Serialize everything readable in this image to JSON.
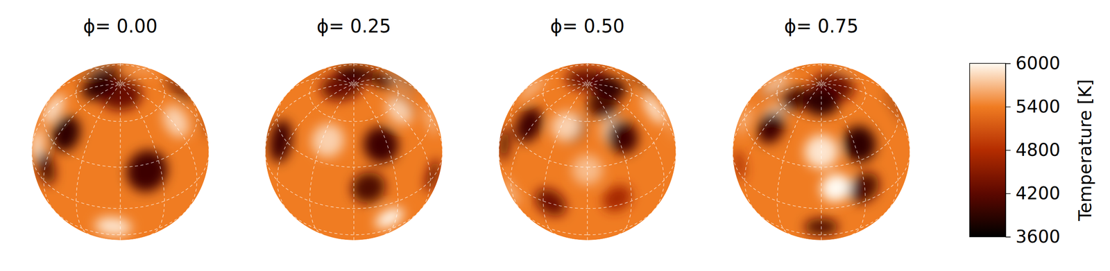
{
  "chart_data": {
    "type": "surface_map",
    "panels": [
      {
        "title": "ϕ= 0.00",
        "phase": 0.0
      },
      {
        "title": "ϕ= 0.25",
        "phase": 0.25
      },
      {
        "title": "ϕ= 0.50",
        "phase": 0.5
      },
      {
        "title": "ϕ= 0.75",
        "phase": 0.75
      }
    ],
    "surface_temperature": 5400,
    "spots": [
      {
        "lon": 20,
        "lat": 25,
        "radius": 14,
        "temperature": 4000
      },
      {
        "lon": -55,
        "lat": 40,
        "radius": 12,
        "temperature": 3900
      },
      {
        "lon": 0,
        "lat": 82,
        "radius": 14,
        "temperature": 4300
      },
      {
        "lon": -80,
        "lat": 15,
        "radius": 10,
        "temperature": 6000
      },
      {
        "lon": -5,
        "lat": -20,
        "radius": 12,
        "temperature": 5900
      },
      {
        "lon": 65,
        "lat": 45,
        "radius": 11,
        "temperature": 5800
      },
      {
        "lon": 115,
        "lat": 42,
        "radius": 12,
        "temperature": 4000
      },
      {
        "lon": 100,
        "lat": 15,
        "radius": 11,
        "temperature": 4100
      },
      {
        "lon": 115,
        "lat": -15,
        "radius": 10,
        "temperature": 6000
      },
      {
        "lon": 160,
        "lat": 55,
        "radius": 10,
        "temperature": 4200
      },
      {
        "lon": 155,
        "lat": 0,
        "radius": 11,
        "temperature": 4300
      },
      {
        "lon": 200,
        "lat": 5,
        "radius": 10,
        "temperature": 4700
      },
      {
        "lon": 155,
        "lat": 55,
        "radius": 10,
        "temperature": 5800
      },
      {
        "lon": 210,
        "lat": 50,
        "radius": 10,
        "temperature": 5800
      },
      {
        "lon": 180,
        "lat": 28,
        "radius": 10,
        "temperature": 5700
      },
      {
        "lon": 210,
        "lat": 70,
        "radius": 10,
        "temperature": 4100
      },
      {
        "lon": 215,
        "lat": 45,
        "radius": 11,
        "temperature": 4000
      },
      {
        "lon": 300,
        "lat": 10,
        "radius": 11,
        "temperature": 4100
      },
      {
        "lon": 270,
        "lat": -20,
        "radius": 11,
        "temperature": 4100
      },
      {
        "lon": 270,
        "lat": 40,
        "radius": 11,
        "temperature": 5900
      },
      {
        "lon": 270,
        "lat": 76,
        "radius": 12,
        "temperature": 3900
      }
    ],
    "colorbar": {
      "label": "Temperature [K]",
      "range": [
        3600,
        6000
      ],
      "ticks": [
        3600,
        4200,
        4800,
        5400,
        6000
      ]
    }
  }
}
